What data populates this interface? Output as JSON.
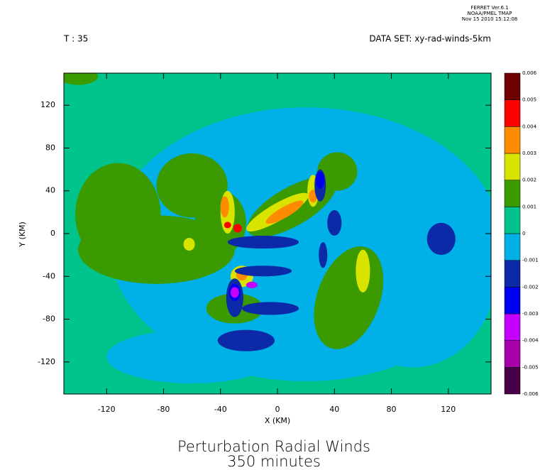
{
  "chart_data": {
    "type": "contour",
    "stamp": [
      "FERRET Ver.6.1",
      "NOAA/PMEL TMAP",
      "Nov 15 2010 15:12:08"
    ],
    "time_label": "T : 35",
    "dataset_label": "DATA SET: xy-rad-winds-5km",
    "title": "Perturbation Radial Winds",
    "subtitle": "350 minutes",
    "xlabel": "X (KM)",
    "ylabel": "Y (KM)",
    "xlim": [
      -150,
      150
    ],
    "ylim": [
      -150,
      150
    ],
    "xticks": [
      -120,
      -80,
      -40,
      0,
      40,
      80,
      120
    ],
    "yticks": [
      -120,
      -80,
      -40,
      0,
      40,
      80,
      120
    ],
    "levels": [
      -0.006,
      -0.005,
      -0.004,
      -0.003,
      -0.002,
      -0.001,
      0,
      0.001,
      0.002,
      0.003,
      0.004,
      0.005,
      0.006
    ],
    "colors": [
      "#4a0048",
      "#a800a8",
      "#c400ff",
      "#0000f0",
      "#0c2aa8",
      "#00b0e6",
      "#00c48c",
      "#3a9a00",
      "#d8e400",
      "#ff8c00",
      "#ff0000",
      "#6e0000"
    ]
  }
}
